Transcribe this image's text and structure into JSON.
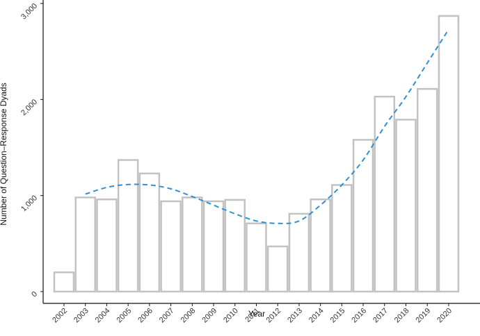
{
  "chart_data": {
    "type": "bar",
    "title": "",
    "xlabel": "Year",
    "ylabel": "Number of Question–Response Dyads",
    "categories": [
      "2002",
      "2003",
      "2004",
      "2005",
      "2006",
      "2007",
      "2008",
      "2009",
      "2010",
      "2011",
      "2012",
      "2013",
      "2014",
      "2015",
      "2016",
      "2017",
      "2018",
      "2019",
      "2020"
    ],
    "values": [
      200,
      980,
      960,
      1370,
      1230,
      940,
      980,
      940,
      955,
      710,
      470,
      810,
      960,
      1110,
      1580,
      2030,
      1790,
      2110,
      2870
    ],
    "ylim": [
      0,
      3000
    ],
    "yticks": [
      0,
      1000,
      2000,
      3000
    ],
    "ytick_labels": [
      "0",
      "1,000",
      "2,000",
      "3,000"
    ],
    "trend_line": {
      "style": "dashed",
      "x": [
        "2003",
        "2004",
        "2005",
        "2006",
        "2007",
        "2008",
        "2009",
        "2010",
        "2011",
        "2012",
        "2013",
        "2014",
        "2015",
        "2016",
        "2017",
        "2018",
        "2019",
        "2020"
      ],
      "values": [
        1015,
        1085,
        1115,
        1110,
        1070,
        990,
        900,
        810,
        735,
        710,
        735,
        900,
        1110,
        1370,
        1720,
        2030,
        2380,
        2730
      ]
    },
    "grid": false,
    "legend": "none",
    "colors": {
      "bar_fill": "#ffffff",
      "bar_edge": "#c2c2c2",
      "trend": "#2f8fd6",
      "axis": "#111111"
    }
  }
}
